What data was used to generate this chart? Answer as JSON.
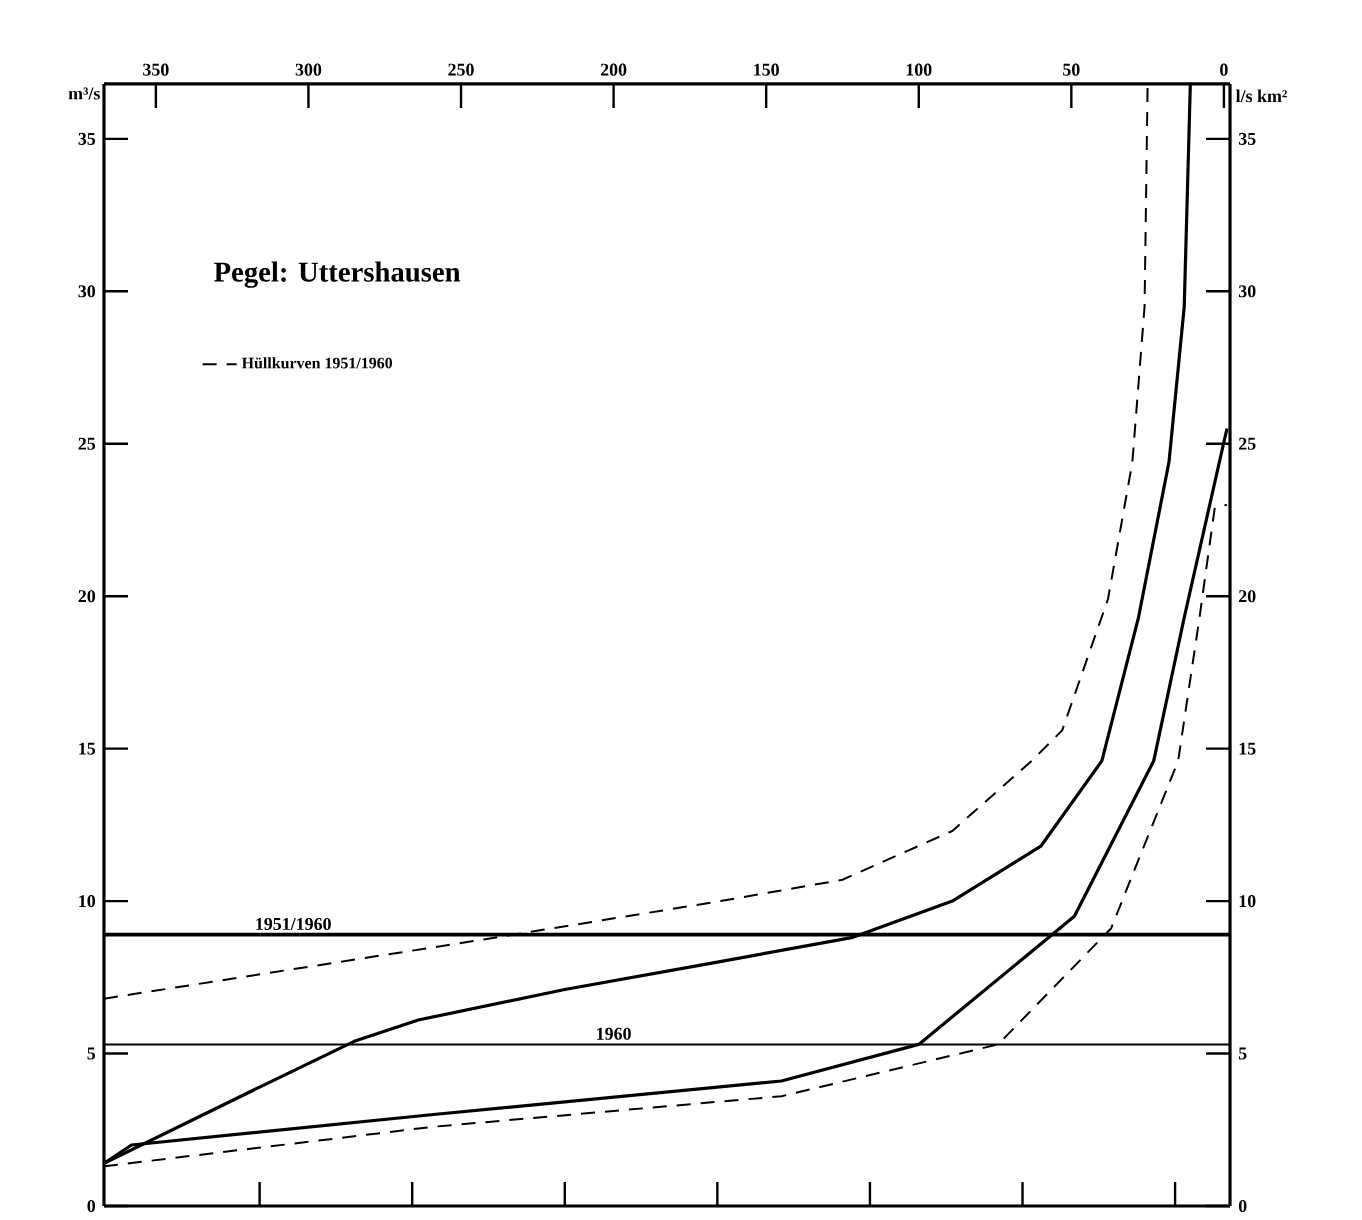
{
  "chart_data": {
    "type": "line",
    "title": "Pegel: Uttershausen",
    "ylabel": "m³/s",
    "y2label": "l/s km²",
    "xlim": [
      367,
      -2
    ],
    "ylim": [
      0,
      36.8
    ],
    "y2lim": [
      0,
      36.8
    ],
    "xticks": [
      350,
      300,
      250,
      200,
      150,
      100,
      50,
      0,
      {
        "value": 316,
        "label": null
      },
      {
        "value": 266,
        "label": null
      },
      {
        "value": 216,
        "label": null
      },
      {
        "value": 166,
        "label": null
      },
      {
        "value": 116,
        "label": null
      },
      {
        "value": 66,
        "label": null
      },
      {
        "value": 16,
        "label": null
      }
    ],
    "yticks": [
      0,
      5,
      10,
      15,
      20,
      25,
      30,
      35
    ],
    "y2ticks": [
      0,
      5,
      10,
      15,
      20,
      25,
      30,
      35
    ],
    "legend": "top left",
    "series": [
      {
        "color": "#000000",
        "line_style": "solid",
        "x": [
          367,
          316,
          285,
          264,
          216,
          166,
          122,
          89,
          60,
          40,
          28,
          18,
          13,
          11
        ],
        "values": [
          1.4,
          3.9,
          5.4,
          6.1,
          7.1,
          8.0,
          8.8,
          10.0,
          11.8,
          14.6,
          19.3,
          24.4,
          29.5,
          36.8
        ]
      },
      {
        "name": "Hüllkurven 1951/1960",
        "color": "#000000",
        "line_style": "dashed",
        "x": [
          367,
          242,
          165,
          125,
          89,
          63,
          53,
          38,
          30,
          26,
          25
        ],
        "values": [
          6.8,
          8.75,
          10.0,
          10.7,
          12.3,
          14.6,
          15.6,
          19.9,
          24.4,
          29.5,
          36.8
        ]
      },
      {
        "color": "#000000",
        "line_style": "solid",
        "x": [
          367,
          358,
          259,
          145,
          100,
          49,
          23,
          13,
          -1
        ],
        "values": [
          1.4,
          2.0,
          3.0,
          4.1,
          5.3,
          9.5,
          14.6,
          19.3,
          25.5
        ]
      },
      {
        "color": "#000000",
        "line_style": "dashed",
        "x": [
          367,
          259,
          145,
          74,
          37,
          15,
          8,
          3,
          -1
        ],
        "values": [
          1.3,
          2.6,
          3.6,
          5.3,
          9.1,
          14.6,
          19.3,
          22.9,
          23.0
        ]
      }
    ],
    "ref_lines": [
      {
        "axis": "y",
        "value": 8.9
      },
      {
        "axis": "y",
        "value": 5.3
      }
    ],
    "annotations": [
      {
        "text": "1951/1960",
        "x": 305,
        "y": 8.9
      },
      {
        "text": "1960",
        "x": 200,
        "y": 5.3
      }
    ]
  }
}
